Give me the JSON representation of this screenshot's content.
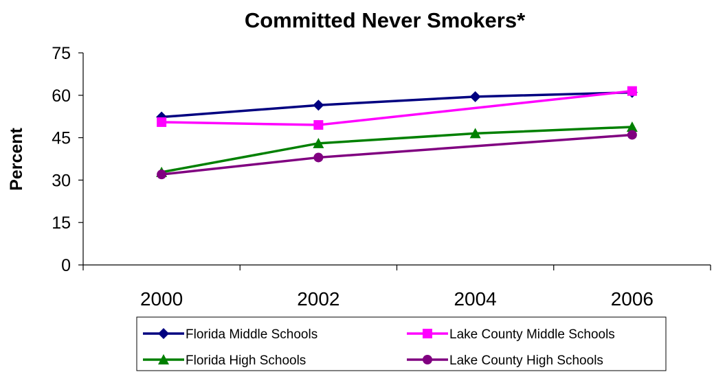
{
  "chart_data": {
    "type": "line",
    "title": "Committed Never Smokers*",
    "xlabel": "",
    "ylabel": "Percent",
    "ylim": [
      0,
      75
    ],
    "yticks": [
      "0",
      "15",
      "30",
      "45",
      "60",
      "75"
    ],
    "categories": [
      "2000",
      "2002",
      "2004",
      "2006"
    ],
    "grid": false,
    "legend_position": "bottom",
    "series": [
      {
        "name": "Florida Middle Schools",
        "color": "#000080",
        "marker": "diamond",
        "values": [
          52.3,
          56.5,
          59.5,
          61.0
        ]
      },
      {
        "name": "Lake County Middle Schools",
        "color": "#FF00FF",
        "marker": "square",
        "values": [
          50.5,
          49.5,
          null,
          61.5
        ]
      },
      {
        "name": "Florida High Schools",
        "color": "#008000",
        "marker": "triangle",
        "values": [
          32.8,
          43.0,
          46.5,
          48.8
        ]
      },
      {
        "name": "Lake County High Schools",
        "color": "#800080",
        "marker": "circle",
        "values": [
          32.0,
          38.0,
          null,
          46.0
        ]
      }
    ]
  }
}
